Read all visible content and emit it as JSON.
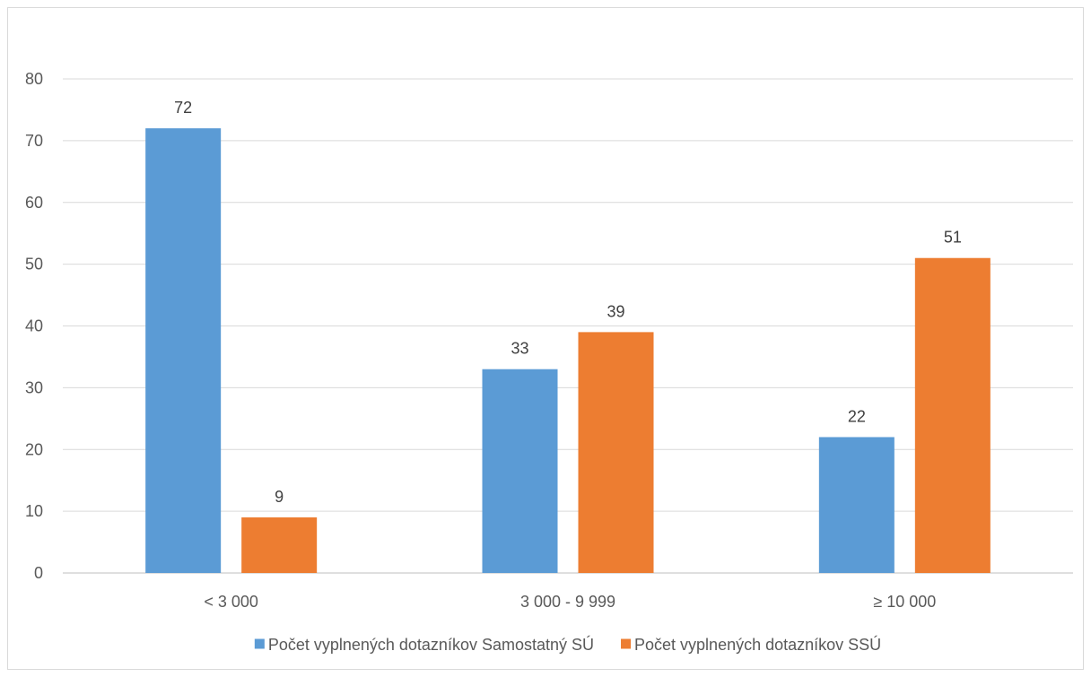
{
  "chart_data": {
    "type": "bar",
    "title": "",
    "xlabel": "",
    "ylabel": "",
    "categories": [
      "< 3 000",
      "3 000 - 9 999",
      "≥ 10 000"
    ],
    "ylim": [
      0,
      80
    ],
    "yticks": [
      0,
      10,
      20,
      30,
      40,
      50,
      60,
      70,
      80
    ],
    "grid": true,
    "legend_position": "bottom",
    "series": [
      {
        "name": "Počet vyplnených dotazníkov Samostatný SÚ",
        "values": [
          72,
          33,
          22
        ],
        "color": "#5b9bd5"
      },
      {
        "name": "Počet vyplnených dotazníkov SSÚ",
        "values": [
          9,
          39,
          51
        ],
        "color": "#ed7d31"
      }
    ]
  }
}
